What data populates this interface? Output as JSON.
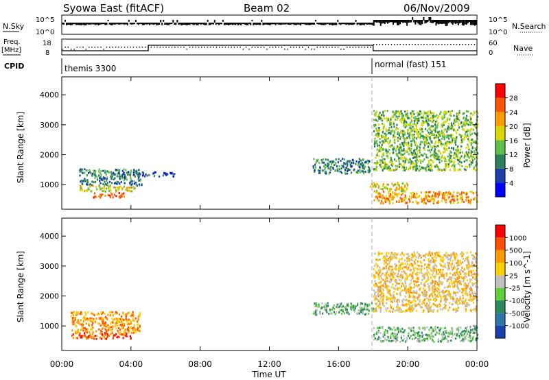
{
  "header": {
    "station": "Syowa East (fitACF)",
    "beam": "Beam 02",
    "date": "06/Nov/2009"
  },
  "nsky_panel": {
    "left_label": "N.Sky",
    "left_ticks": [
      "10^5",
      "10^0"
    ],
    "right_label": "N.Search",
    "right_ticks": [
      "10^5",
      "10^0"
    ]
  },
  "freq_panel": {
    "left_label_1": "Freq.",
    "left_label_2": "[MHz]",
    "left_ticks": [
      "18",
      "8"
    ],
    "right_label": "Nave",
    "right_ticks": [
      "60",
      "0"
    ]
  },
  "cpid": {
    "label": "CPID",
    "modes": [
      {
        "text": "themis 3300",
        "start_hour": 0
      },
      {
        "text": "normal (fast) 151",
        "start_hour": 18
      }
    ]
  },
  "chart_data": [
    {
      "type": "heatmap",
      "name": "power-panel",
      "ylabel": "Slant Range [km]",
      "xlabel": "",
      "ylim": [
        180,
        4600
      ],
      "yticks": [
        "1000",
        "2000",
        "3000",
        "4000"
      ],
      "colorbar": {
        "label": "Power [dB]",
        "ticks": [
          "4",
          "8",
          "12",
          "16",
          "20",
          "24",
          "28"
        ],
        "colors": [
          "#0000ff",
          "#1a3fa8",
          "#2d7f5a",
          "#5fbf4a",
          "#d8d800",
          "#ff9a00",
          "#ff5500",
          "#ff0000"
        ]
      },
      "echo_regions": [
        {
          "t": [
            1,
            4.6
          ],
          "r": [
            1000,
            1550
          ],
          "level": 2
        },
        {
          "t": [
            1,
            4.2
          ],
          "r": [
            800,
            1000
          ],
          "level": 4
        },
        {
          "t": [
            1.8,
            3.6
          ],
          "r": [
            600,
            760
          ],
          "level": 6
        },
        {
          "t": [
            4.6,
            6.5
          ],
          "r": [
            1300,
            1450
          ],
          "level": 1
        },
        {
          "t": [
            14.5,
            17.8
          ],
          "r": [
            1400,
            1900
          ],
          "level": 2
        },
        {
          "t": [
            17.8,
            20
          ],
          "r": [
            800,
            1100
          ],
          "level": 4
        },
        {
          "t": [
            18,
            24
          ],
          "r": [
            400,
            800
          ],
          "level": 5
        },
        {
          "t": [
            18,
            24
          ],
          "r": [
            1500,
            3500
          ],
          "level": 3
        }
      ]
    },
    {
      "type": "heatmap",
      "name": "velocity-panel",
      "ylabel": "Slant Range [km]",
      "xlabel": "Time UT",
      "xticks": [
        "00:00",
        "04:00",
        "08:00",
        "12:00",
        "16:00",
        "20:00",
        "00:00"
      ],
      "ylim": [
        180,
        4600
      ],
      "yticks": [
        "1000",
        "2000",
        "3000",
        "4000"
      ],
      "colorbar": {
        "label": "Velocity [m s^-1]",
        "ticks": [
          "1000",
          "500",
          "100",
          "25",
          "-25",
          "-100",
          "-500",
          "-1000"
        ],
        "colors": [
          "#1a3fb0",
          "#2e78a8",
          "#2d8a5a",
          "#5fcf3a",
          "#c0c0c0",
          "#ffd000",
          "#ff9a00",
          "#ff5000",
          "#ff0000"
        ]
      },
      "echo_regions": [
        {
          "t": [
            0.5,
            4.5
          ],
          "r": [
            800,
            1500
          ],
          "level": 6
        },
        {
          "t": [
            0.5,
            4.0
          ],
          "r": [
            600,
            800
          ],
          "level": 7
        },
        {
          "t": [
            14.5,
            18
          ],
          "r": [
            1400,
            1800
          ],
          "level": 3
        },
        {
          "t": [
            18,
            24
          ],
          "r": [
            500,
            1000
          ],
          "level": 3
        },
        {
          "t": [
            18,
            24
          ],
          "r": [
            1500,
            3500
          ],
          "level": 5
        }
      ]
    }
  ]
}
